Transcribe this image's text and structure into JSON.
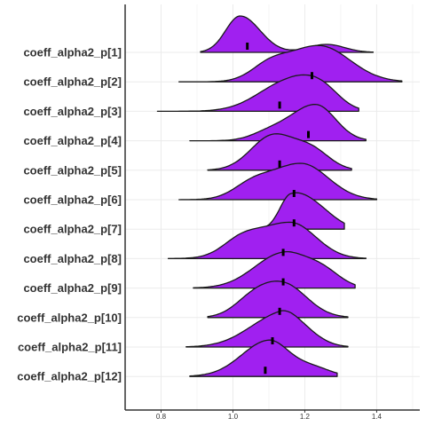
{
  "chart_data": {
    "type": "ridgeline",
    "xlim": [
      0.7,
      1.52
    ],
    "x_ticks": [
      "0.8",
      "1.0",
      "1.2",
      "1.4"
    ],
    "grid": true,
    "fill_color": "#a020f0",
    "series": [
      {
        "name": "coeff_alpha2_p[1]",
        "min": 0.91,
        "max": 1.39,
        "median": 1.04,
        "peak": 1.02,
        "spread_left": 0.04,
        "spread_right": 0.055,
        "second_peak": 1.26,
        "second_height": 0.22
      },
      {
        "name": "coeff_alpha2_p[2]",
        "min": 0.85,
        "max": 1.47,
        "median": 1.22,
        "peak": 1.24,
        "spread_left": 0.09,
        "spread_right": 0.085,
        "second_peak": 1.1,
        "second_height": 0.35
      },
      {
        "name": "coeff_alpha2_p[3]",
        "min": 0.79,
        "max": 1.35,
        "median": 1.13,
        "peak": 1.16,
        "spread_left": 0.085,
        "spread_right": 0.07,
        "second_peak": 1.25,
        "second_height": 0.55
      },
      {
        "name": "coeff_alpha2_p[4]",
        "min": 0.88,
        "max": 1.37,
        "median": 1.21,
        "peak": 1.23,
        "spread_left": 0.07,
        "spread_right": 0.055,
        "second_peak": 1.1,
        "second_height": 0.2
      },
      {
        "name": "coeff_alpha2_p[5]",
        "min": 0.93,
        "max": 1.33,
        "median": 1.13,
        "peak": 1.11,
        "spread_left": 0.06,
        "spread_right": 0.06,
        "second_peak": 1.22,
        "second_height": 0.55
      },
      {
        "name": "coeff_alpha2_p[6]",
        "min": 0.85,
        "max": 1.4,
        "median": 1.17,
        "peak": 1.19,
        "spread_left": 0.09,
        "spread_right": 0.075,
        "second_peak": 1.05,
        "second_height": 0.3
      },
      {
        "name": "coeff_alpha2_p[7]",
        "min": 1.09,
        "max": 1.31,
        "median": 1.17,
        "peak": 1.16,
        "spread_left": 0.03,
        "spread_right": 0.055,
        "second_peak": 1.24,
        "second_height": 0.45
      },
      {
        "name": "coeff_alpha2_p[8]",
        "min": 0.82,
        "max": 1.37,
        "median": 1.14,
        "peak": 1.16,
        "spread_left": 0.095,
        "spread_right": 0.07,
        "second_peak": 1.02,
        "second_height": 0.35
      },
      {
        "name": "coeff_alpha2_p[9]",
        "min": 0.89,
        "max": 1.34,
        "median": 1.14,
        "peak": 1.14,
        "spread_left": 0.08,
        "spread_right": 0.065,
        "second_peak": 1.25,
        "second_height": 0.45
      },
      {
        "name": "coeff_alpha2_p[10]",
        "min": 0.93,
        "max": 1.32,
        "median": 1.13,
        "peak": 1.14,
        "spread_left": 0.07,
        "spread_right": 0.065,
        "second_peak": 1.05,
        "second_height": 0.35
      },
      {
        "name": "coeff_alpha2_p[11]",
        "min": 0.87,
        "max": 1.32,
        "median": 1.11,
        "peak": 1.13,
        "spread_left": 0.085,
        "spread_right": 0.05,
        "second_peak": 1.2,
        "second_height": 0.35
      },
      {
        "name": "coeff_alpha2_p[12]",
        "min": 0.88,
        "max": 1.29,
        "median": 1.09,
        "peak": 1.1,
        "spread_left": 0.075,
        "spread_right": 0.055,
        "second_peak": 1.22,
        "second_height": 0.25
      }
    ]
  }
}
